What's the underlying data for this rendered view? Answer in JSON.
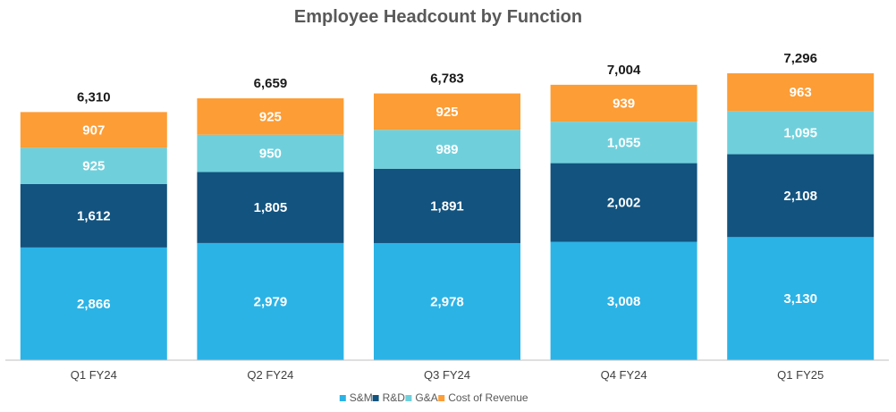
{
  "chart_data": {
    "type": "stacked-bar",
    "title": "Employee Headcount by Function",
    "categories": [
      "Q1 FY24",
      "Q2 FY24",
      "Q3 FY24",
      "Q4 FY24",
      "Q1 FY25"
    ],
    "series": [
      {
        "name": "S&M",
        "color": "#2bb3e6",
        "values": [
          2866,
          2979,
          2978,
          3008,
          3130
        ],
        "labels": [
          "2,866",
          "2,979",
          "2,978",
          "3,008",
          "3,130"
        ]
      },
      {
        "name": "R&D",
        "color": "#12537f",
        "values": [
          1612,
          1805,
          1891,
          2002,
          2108
        ],
        "labels": [
          "1,612",
          "1,805",
          "1,891",
          "2,002",
          "2,108"
        ]
      },
      {
        "name": "G&A",
        "color": "#6fd0dc",
        "values": [
          925,
          950,
          989,
          1055,
          1095
        ],
        "labels": [
          "925",
          "950",
          "989",
          "1,055",
          "1,095"
        ]
      },
      {
        "name": "Cost of Revenue",
        "color": "#fd9d35",
        "values": [
          907,
          925,
          925,
          939,
          963
        ],
        "labels": [
          "907",
          "925",
          "925",
          "939",
          "963"
        ]
      }
    ],
    "totals": [
      6310,
      6659,
      6783,
      7004,
      7296
    ],
    "total_labels": [
      "6,310",
      "6,659",
      "6,783",
      "7,004",
      "7,296"
    ],
    "ylim": [
      0,
      7296
    ],
    "grid": false,
    "legend_position": "bottom"
  }
}
